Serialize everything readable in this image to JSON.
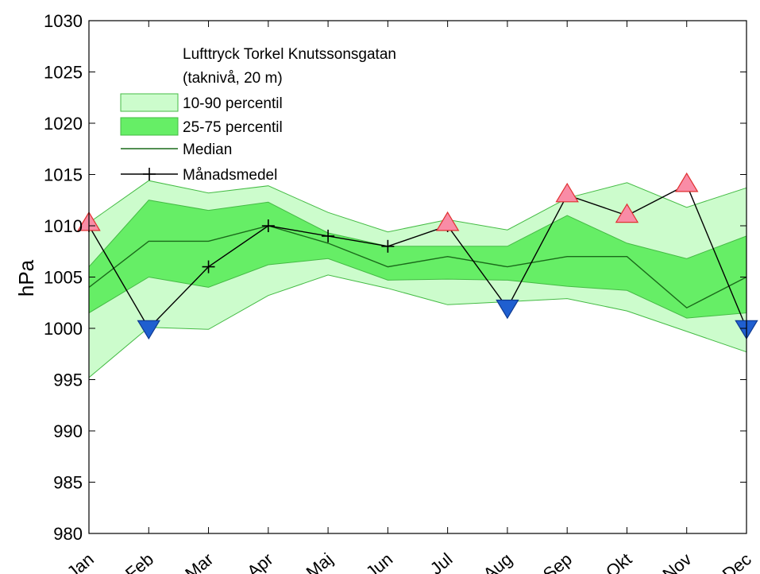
{
  "chart_data": {
    "type": "line",
    "ylabel": "hPa",
    "ylim": [
      980,
      1030
    ],
    "yticks": [
      980,
      985,
      990,
      995,
      1000,
      1005,
      1010,
      1015,
      1020,
      1025,
      1030
    ],
    "categories": [
      "Jan",
      "Feb",
      "Mar",
      "Apr",
      "Maj",
      "Jun",
      "Jul",
      "Aug",
      "Sep",
      "Okt",
      "Nov",
      "Dec"
    ],
    "legend": {
      "title_line1": "Lufttryck Torkel Knutssonsgatan",
      "title_line2": "(taknivå, 20 m)",
      "p1090_label": "10-90 percentil",
      "p2575_label": "25-75 percentil",
      "median_label": "Median",
      "mean_label": "Månadsmedel",
      "placement": "top-left"
    },
    "p10": [
      995.2,
      1000.1,
      999.9,
      1003.2,
      1005.2,
      1003.9,
      1002.3,
      1002.6,
      1002.9,
      1001.7,
      999.7,
      997.7
    ],
    "p90": [
      1010.3,
      1014.4,
      1013.2,
      1013.9,
      1011.3,
      1009.4,
      1010.6,
      1009.6,
      1012.7,
      1014.2,
      1011.8,
      1013.7
    ],
    "p25": [
      1001.5,
      1005.0,
      1004.0,
      1006.2,
      1006.8,
      1004.7,
      1004.8,
      1004.7,
      1004.1,
      1003.7,
      1001.0,
      1001.5
    ],
    "p75": [
      1006.0,
      1012.5,
      1011.5,
      1012.3,
      1009.3,
      1008.0,
      1008.0,
      1008.0,
      1011.0,
      1008.3,
      1006.8,
      1009.0
    ],
    "median": [
      1004.0,
      1008.5,
      1008.5,
      1010.0,
      1008.3,
      1006.0,
      1007.0,
      1006.0,
      1007.0,
      1007.0,
      1002.0,
      1005.0
    ],
    "mean": [
      1010.0,
      1000.0,
      1006.0,
      1010.0,
      1009.0,
      1008.0,
      1010.0,
      1002.0,
      1013.0,
      1011.0,
      1014.0,
      1000.0
    ],
    "markers": [
      {
        "month": "Jan",
        "value": 1010.3,
        "kind": "high"
      },
      {
        "month": "Feb",
        "value": 1000.0,
        "kind": "low"
      },
      {
        "month": "Jul",
        "value": 1010.3,
        "kind": "high"
      },
      {
        "month": "Aug",
        "value": 1002.0,
        "kind": "low"
      },
      {
        "month": "Sep",
        "value": 1013.1,
        "kind": "high"
      },
      {
        "month": "Okt",
        "value": 1011.1,
        "kind": "high"
      },
      {
        "month": "Nov",
        "value": 1014.1,
        "kind": "high"
      },
      {
        "month": "Dec",
        "value": 1000.0,
        "kind": "low"
      }
    ],
    "grid": false,
    "colors": {
      "p1090": "#ccfccc",
      "p2575": "#66ee66",
      "band_edge": "#44bb44",
      "median": "#1a6a1a",
      "mean": "#000000",
      "high_marker": "#f98ca6",
      "high_marker_edge": "#e03030",
      "low_marker": "#1f5fd0",
      "low_marker_edge": "#0f3a90"
    }
  }
}
